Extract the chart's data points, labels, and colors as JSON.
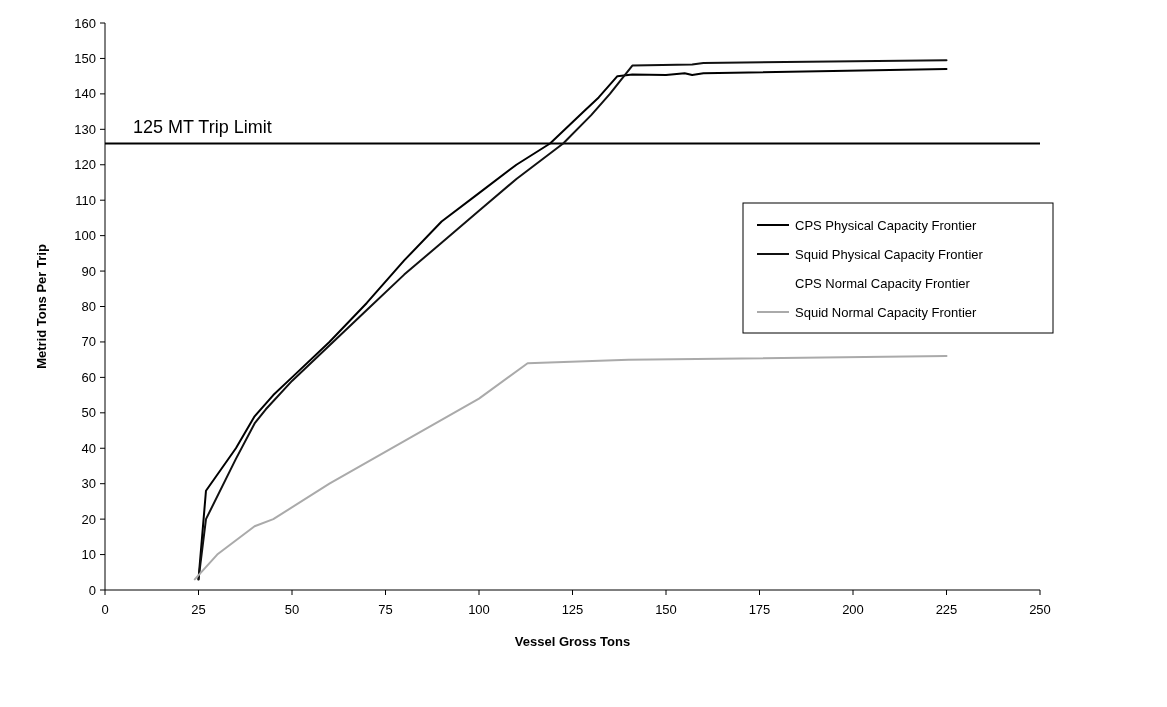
{
  "chart_data": {
    "type": "line",
    "xlabel": "Vessel Gross Tons",
    "ylabel": "Metrid Tons Per Trip",
    "xlim": [
      0,
      250
    ],
    "xticks": [
      0,
      25,
      50,
      75,
      100,
      125,
      150,
      175,
      200,
      225,
      250
    ],
    "ylim": [
      0,
      160
    ],
    "yticks": [
      0,
      10,
      20,
      30,
      40,
      50,
      60,
      70,
      80,
      90,
      100,
      110,
      120,
      130,
      140,
      150,
      160
    ],
    "grid": false,
    "legend": "right",
    "line_style": "solid",
    "ref_lines": [
      {
        "axis": "y",
        "value": 126,
        "label": "125 MT Trip Limit",
        "color": "#000000"
      }
    ],
    "series": [
      {
        "name": "CPS Physical Capacity Frontier",
        "color": "#000000",
        "x": [
          25,
          27,
          35,
          40,
          45,
          50,
          60,
          70,
          80,
          90,
          100,
          110,
          119,
          128,
          132,
          137,
          141,
          150,
          155,
          157,
          160,
          225
        ],
        "values": [
          3,
          28,
          40,
          49,
          55,
          60,
          70,
          81,
          93,
          104,
          112,
          120,
          126,
          135,
          139,
          145,
          145.5,
          145.3,
          145.8,
          145.3,
          145.8,
          147
        ]
      },
      {
        "name": "Squid Physical Capacity Frontier",
        "color": "#111111",
        "x": [
          25,
          27,
          35,
          40,
          43,
          50,
          60,
          70,
          80,
          90,
          100,
          110,
          122.5,
          130,
          135,
          141,
          157,
          160,
          225
        ],
        "values": [
          3,
          20,
          37,
          47,
          51,
          59,
          69,
          79,
          89,
          98,
          107,
          116,
          126,
          134,
          140,
          148,
          148.3,
          148.7,
          149.5
        ]
      },
      {
        "name": "CPS Normal Capacity Frontier"
      },
      {
        "name": "Squid Normal Capacity Frontier",
        "color": "#aaaaaa",
        "x": [
          24,
          30,
          40,
          45,
          60,
          80,
          100,
          113,
          140,
          225
        ],
        "values": [
          3,
          10,
          18,
          20,
          30,
          42,
          54,
          64,
          65,
          66
        ]
      }
    ]
  }
}
